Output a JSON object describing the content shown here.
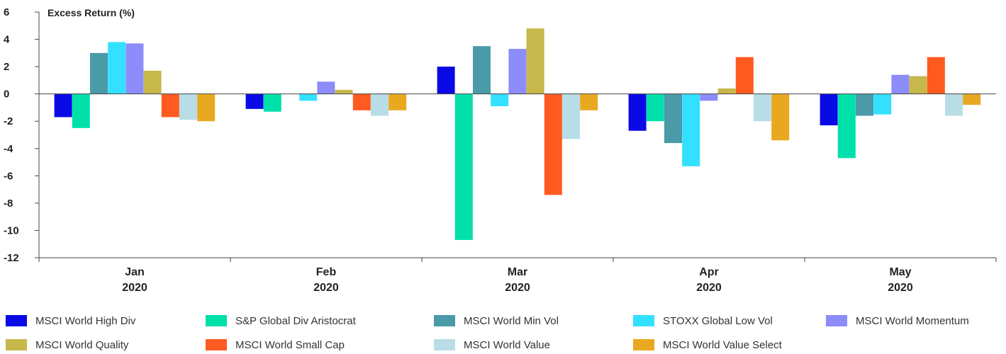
{
  "chart_data": {
    "type": "bar",
    "title": "",
    "ylabel": "Excess Return (%)",
    "xlabel": "",
    "ylim": [
      -12,
      6
    ],
    "yticks": [
      6,
      4,
      2,
      0,
      -2,
      -4,
      -6,
      -8,
      -10,
      -12
    ],
    "grid": false,
    "legend_position": "bottom",
    "categories": [
      {
        "month": "Jan",
        "year": "2020"
      },
      {
        "month": "Feb",
        "year": "2020"
      },
      {
        "month": "Mar",
        "year": "2020"
      },
      {
        "month": "Apr",
        "year": "2020"
      },
      {
        "month": "May",
        "year": "2020"
      }
    ],
    "series": [
      {
        "name": "MSCI World High Div",
        "color": "#0a0ae6",
        "values": [
          -1.7,
          -1.1,
          2.0,
          -2.7,
          -2.3
        ]
      },
      {
        "name": "S&P Global Div Aristocrat",
        "color": "#00e0aa",
        "values": [
          -2.5,
          -1.3,
          -10.7,
          -2.0,
          -4.7
        ]
      },
      {
        "name": "MSCI World Min Vol",
        "color": "#4a9aa8",
        "values": [
          3.0,
          0.0,
          3.5,
          -3.6,
          -1.6
        ]
      },
      {
        "name": "STOXX Global Low Vol",
        "color": "#33e0ff",
        "values": [
          3.8,
          -0.5,
          -0.9,
          -5.3,
          -1.5
        ]
      },
      {
        "name": "MSCI World Momentum",
        "color": "#8c8cfa",
        "values": [
          3.7,
          0.9,
          3.3,
          -0.5,
          1.4
        ]
      },
      {
        "name": "MSCI World Quality",
        "color": "#c6b84a",
        "values": [
          1.7,
          0.3,
          4.8,
          0.4,
          1.3
        ]
      },
      {
        "name": "MSCI World Small Cap",
        "color": "#ff5a1f",
        "values": [
          -1.7,
          -1.2,
          -7.4,
          2.7,
          2.7
        ]
      },
      {
        "name": "MSCI World Value",
        "color": "#b8dde6",
        "values": [
          -1.9,
          -1.6,
          -3.3,
          -2.0,
          -1.6
        ]
      },
      {
        "name": "MSCI World Value Select",
        "color": "#e8a820",
        "values": [
          -2.0,
          -1.2,
          -1.2,
          -3.4,
          -0.8
        ]
      }
    ]
  }
}
